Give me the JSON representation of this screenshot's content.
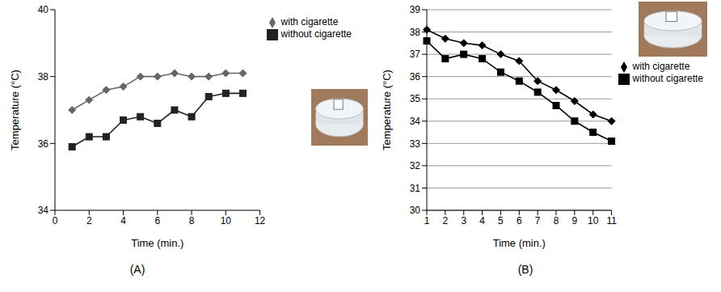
{
  "chart_data": [
    {
      "type": "line",
      "title": "(A)",
      "x_label": "Time (min.)",
      "y_label": "Temperature (°C)",
      "x": [
        1,
        2,
        3,
        4,
        5,
        6,
        7,
        8,
        9,
        10,
        11
      ],
      "xlim": [
        0,
        12
      ],
      "xticks": [
        0,
        2,
        4,
        6,
        8,
        10,
        12
      ],
      "ylim": [
        34,
        40
      ],
      "yticks": [
        34,
        36,
        38,
        40
      ],
      "grid": false,
      "legend": "right",
      "series": [
        {
          "name": "with cigarette",
          "color": "#666666",
          "marker": "diamond",
          "line_style": "solid",
          "values": [
            37.0,
            37.3,
            37.6,
            37.7,
            38.0,
            38.0,
            38.1,
            38.0,
            38.0,
            38.1,
            38.1
          ]
        },
        {
          "name": "without cigarette",
          "color": "#222222",
          "marker": "square",
          "line_style": "solid",
          "values": [
            35.9,
            36.2,
            36.2,
            36.7,
            36.8,
            36.6,
            37.0,
            36.8,
            37.4,
            37.5,
            37.5
          ]
        }
      ]
    },
    {
      "type": "line",
      "title": "(B)",
      "x_label": "Time (min.)",
      "y_label": "Temperature (°C)",
      "categories": [
        "1",
        "2",
        "3",
        "4",
        "5",
        "6",
        "7",
        "8",
        "9",
        "10",
        "11"
      ],
      "ylim": [
        30,
        39
      ],
      "yticks": [
        30,
        31,
        32,
        33,
        34,
        35,
        36,
        37,
        38,
        39
      ],
      "grid": true,
      "legend": "right",
      "series": [
        {
          "name": "with cigarette",
          "color": "#000000",
          "marker": "diamond",
          "line_style": "solid",
          "values": [
            38.1,
            37.7,
            37.5,
            37.4,
            37.0,
            36.7,
            35.8,
            35.4,
            34.9,
            34.3,
            34.0
          ]
        },
        {
          "name": "without cigarette",
          "color": "#000000",
          "marker": "square",
          "line_style": "solid",
          "values": [
            37.6,
            36.8,
            37.0,
            36.8,
            36.2,
            35.8,
            35.3,
            34.7,
            34.0,
            33.5,
            33.1
          ]
        }
      ]
    }
  ]
}
